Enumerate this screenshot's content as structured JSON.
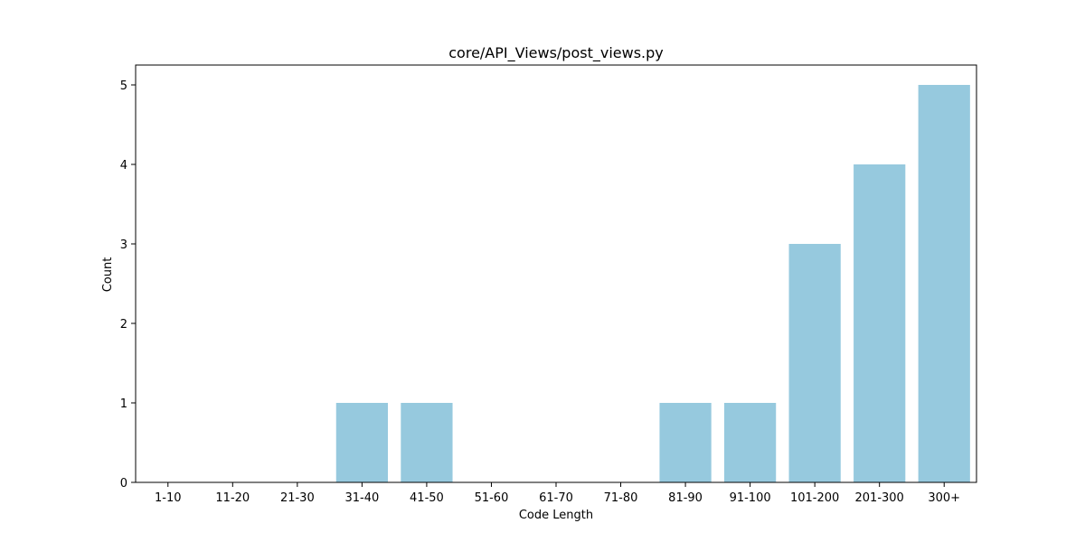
{
  "chart_data": {
    "type": "bar",
    "title": "core/API_Views/post_views.py",
    "xlabel": "Code Length",
    "ylabel": "Count",
    "categories": [
      "1-10",
      "11-20",
      "21-30",
      "31-40",
      "41-50",
      "51-60",
      "61-70",
      "71-80",
      "81-90",
      "91-100",
      "101-200",
      "201-300",
      "300+"
    ],
    "values": [
      0,
      0,
      0,
      1,
      1,
      0,
      0,
      0,
      1,
      1,
      3,
      4,
      5
    ],
    "ylim": [
      0,
      5.25
    ],
    "yticks": [
      0,
      1,
      2,
      3,
      4,
      5
    ],
    "grid": false,
    "bar_color": "#96c9de"
  }
}
